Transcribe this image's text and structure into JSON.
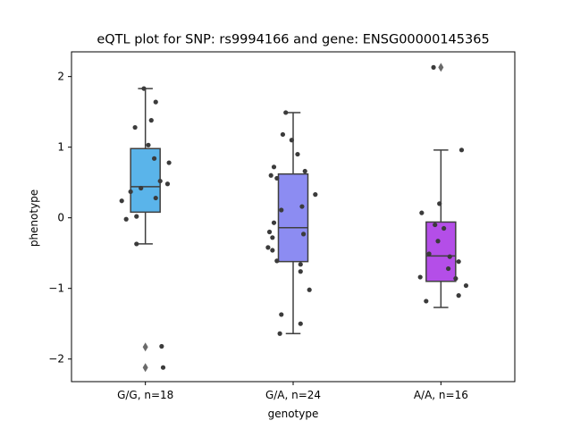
{
  "chart_data": {
    "type": "box",
    "title": "eQTL plot for SNP: rs9994166 and gene: ENSG00000145365",
    "xlabel": "genotype",
    "ylabel": "phenotype",
    "ylim": [
      -2.32,
      2.35
    ],
    "yticks": [
      -2,
      -1,
      0,
      1,
      2
    ],
    "grid": false,
    "groups": [
      {
        "label": "G/G, n=18",
        "color": "#5ab4ea",
        "box": {
          "q1": 0.08,
          "median": 0.44,
          "q3": 0.98,
          "whisker_low": -0.37,
          "whisker_high": 1.83
        },
        "outliers": [
          -1.83,
          -2.12
        ],
        "points": [
          {
            "dx": -0.01,
            "y": 1.83
          },
          {
            "dx": 0.07,
            "y": 1.64
          },
          {
            "dx": 0.04,
            "y": 1.38
          },
          {
            "dx": -0.07,
            "y": 1.28
          },
          {
            "dx": 0.02,
            "y": 1.03
          },
          {
            "dx": 0.06,
            "y": 0.84
          },
          {
            "dx": 0.16,
            "y": 0.78
          },
          {
            "dx": 0.1,
            "y": 0.52
          },
          {
            "dx": 0.15,
            "y": 0.48
          },
          {
            "dx": -0.03,
            "y": 0.42
          },
          {
            "dx": -0.1,
            "y": 0.37
          },
          {
            "dx": 0.07,
            "y": 0.28
          },
          {
            "dx": -0.16,
            "y": 0.24
          },
          {
            "dx": -0.06,
            "y": 0.02
          },
          {
            "dx": -0.13,
            "y": -0.02
          },
          {
            "dx": -0.06,
            "y": -0.37
          },
          {
            "dx": 0.11,
            "y": -1.82
          },
          {
            "dx": 0.12,
            "y": -2.12
          }
        ]
      },
      {
        "label": "G/A, n=24",
        "color": "#8c8cf2",
        "box": {
          "q1": -0.62,
          "median": -0.14,
          "q3": 0.62,
          "whisker_low": -1.64,
          "whisker_high": 1.49
        },
        "outliers": [],
        "points": [
          {
            "dx": -0.05,
            "y": 1.49
          },
          {
            "dx": -0.07,
            "y": 1.18
          },
          {
            "dx": -0.01,
            "y": 1.1
          },
          {
            "dx": 0.03,
            "y": 0.9
          },
          {
            "dx": -0.13,
            "y": 0.72
          },
          {
            "dx": 0.08,
            "y": 0.66
          },
          {
            "dx": -0.15,
            "y": 0.6
          },
          {
            "dx": -0.11,
            "y": 0.56
          },
          {
            "dx": 0.15,
            "y": 0.33
          },
          {
            "dx": 0.06,
            "y": 0.16
          },
          {
            "dx": -0.08,
            "y": 0.11
          },
          {
            "dx": -0.13,
            "y": -0.07
          },
          {
            "dx": -0.16,
            "y": -0.2
          },
          {
            "dx": 0.07,
            "y": -0.23
          },
          {
            "dx": -0.14,
            "y": -0.28
          },
          {
            "dx": -0.17,
            "y": -0.42
          },
          {
            "dx": -0.14,
            "y": -0.46
          },
          {
            "dx": -0.11,
            "y": -0.61
          },
          {
            "dx": 0.05,
            "y": -0.66
          },
          {
            "dx": 0.05,
            "y": -0.76
          },
          {
            "dx": 0.11,
            "y": -1.02
          },
          {
            "dx": -0.08,
            "y": -1.37
          },
          {
            "dx": 0.05,
            "y": -1.5
          },
          {
            "dx": -0.09,
            "y": -1.64
          }
        ]
      },
      {
        "label": "A/A, n=16",
        "color": "#b44ee8",
        "box": {
          "q1": -0.9,
          "median": -0.54,
          "q3": -0.06,
          "whisker_low": -1.27,
          "whisker_high": 0.96
        },
        "outliers": [
          2.13
        ],
        "points": [
          {
            "dx": -0.05,
            "y": 2.13
          },
          {
            "dx": 0.14,
            "y": 0.96
          },
          {
            "dx": -0.01,
            "y": 0.2
          },
          {
            "dx": -0.13,
            "y": 0.07
          },
          {
            "dx": -0.04,
            "y": -0.1
          },
          {
            "dx": 0.02,
            "y": -0.15
          },
          {
            "dx": -0.02,
            "y": -0.33
          },
          {
            "dx": -0.08,
            "y": -0.51
          },
          {
            "dx": 0.06,
            "y": -0.55
          },
          {
            "dx": 0.12,
            "y": -0.62
          },
          {
            "dx": 0.05,
            "y": -0.72
          },
          {
            "dx": -0.14,
            "y": -0.84
          },
          {
            "dx": 0.1,
            "y": -0.86
          },
          {
            "dx": 0.17,
            "y": -0.96
          },
          {
            "dx": 0.12,
            "y": -1.1
          },
          {
            "dx": -0.1,
            "y": -1.18
          }
        ]
      }
    ],
    "colors": {
      "axis": "#000000",
      "box_edge": "#3f3f3f",
      "point": "#3b3b3b"
    }
  }
}
